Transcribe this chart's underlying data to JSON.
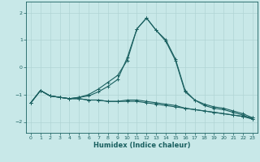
{
  "xlabel": "Humidex (Indice chaleur)",
  "ylabel": "",
  "background_color": "#c8e8e8",
  "grid_color": "#b0d4d4",
  "line_color": "#1a6060",
  "xlim": [
    -0.5,
    23.5
  ],
  "ylim": [
    -2.4,
    2.4
  ],
  "yticks": [
    -2,
    -1,
    0,
    1,
    2
  ],
  "xticks": [
    0,
    1,
    2,
    3,
    4,
    5,
    6,
    7,
    8,
    9,
    10,
    11,
    12,
    13,
    14,
    15,
    16,
    17,
    18,
    19,
    20,
    21,
    22,
    23
  ],
  "series": [
    {
      "x": [
        0,
        1,
        2,
        3,
        4,
        5,
        6,
        7,
        8,
        9,
        10,
        11,
        12,
        13,
        14,
        15,
        16,
        17,
        18,
        19,
        20,
        21,
        22,
        23
      ],
      "y": [
        -1.3,
        -0.85,
        -1.05,
        -1.1,
        -1.15,
        -1.15,
        -1.2,
        -1.2,
        -1.25,
        -1.25,
        -1.25,
        -1.25,
        -1.3,
        -1.35,
        -1.4,
        -1.45,
        -1.5,
        -1.55,
        -1.6,
        -1.65,
        -1.7,
        -1.75,
        -1.8,
        -1.85
      ]
    },
    {
      "x": [
        0,
        1,
        2,
        3,
        4,
        5,
        6,
        7,
        8,
        9,
        10,
        11,
        12,
        13,
        14,
        15,
        16,
        17,
        18,
        19,
        20,
        21,
        22,
        23
      ],
      "y": [
        -1.3,
        -0.85,
        -1.05,
        -1.1,
        -1.15,
        -1.1,
        -1.05,
        -0.9,
        -0.7,
        -0.45,
        0.35,
        1.4,
        1.8,
        1.35,
        1.0,
        0.3,
        -0.85,
        -1.2,
        -1.35,
        -1.45,
        -1.5,
        -1.6,
        -1.7,
        -1.85
      ]
    },
    {
      "x": [
        0,
        1,
        2,
        3,
        4,
        5,
        6,
        7,
        8,
        9,
        10,
        11,
        12,
        13,
        14,
        15,
        16,
        17,
        18,
        19,
        20,
        21,
        22,
        23
      ],
      "y": [
        -1.3,
        -0.85,
        -1.05,
        -1.1,
        -1.15,
        -1.1,
        -1.0,
        -0.8,
        -0.55,
        -0.3,
        0.25,
        1.4,
        1.8,
        1.35,
        0.95,
        0.25,
        -0.9,
        -1.2,
        -1.4,
        -1.5,
        -1.55,
        -1.65,
        -1.75,
        -1.9
      ]
    },
    {
      "x": [
        0,
        1,
        2,
        3,
        4,
        5,
        6,
        7,
        8,
        9,
        10,
        11,
        12,
        13,
        14,
        15,
        16,
        17,
        18,
        19,
        20,
        21,
        22,
        23
      ],
      "y": [
        -1.3,
        -0.85,
        -1.05,
        -1.1,
        -1.15,
        -1.15,
        -1.2,
        -1.2,
        -1.25,
        -1.25,
        -1.2,
        -1.2,
        -1.25,
        -1.3,
        -1.35,
        -1.4,
        -1.5,
        -1.55,
        -1.6,
        -1.65,
        -1.7,
        -1.75,
        -1.8,
        -1.9
      ]
    }
  ]
}
